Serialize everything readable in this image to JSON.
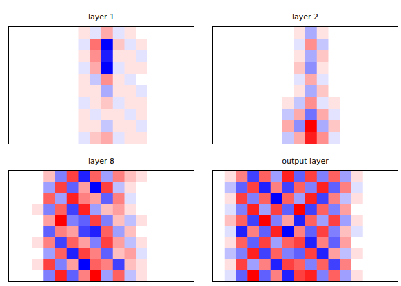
{
  "chart_data": [
    {
      "type": "heatmap",
      "title": "layer 1",
      "tick_labels": false,
      "cells": [
        [
          0,
          0,
          0,
          0,
          0,
          0,
          0.1,
          -0.1,
          0.3,
          -0.1,
          0.1,
          0,
          0,
          0,
          0,
          0
        ],
        [
          0,
          0,
          0,
          0,
          0,
          0,
          -0.1,
          0.5,
          -0.9,
          0.2,
          -0.1,
          0.1,
          0,
          0,
          0,
          0
        ],
        [
          0,
          0,
          0,
          0,
          0,
          0,
          0.1,
          0.4,
          -0.8,
          0.1,
          0.1,
          -0.1,
          0,
          0,
          0,
          0
        ],
        [
          0,
          0,
          0,
          0,
          0,
          0,
          -0.1,
          0.3,
          -0.9,
          -0.1,
          0.1,
          0.1,
          0,
          0,
          0,
          0
        ],
        [
          0,
          0,
          0,
          0,
          0,
          0,
          0.1,
          -0.2,
          0.4,
          0.1,
          -0.1,
          0,
          0,
          0,
          0,
          0
        ],
        [
          0,
          0,
          0,
          0,
          0,
          0,
          0.1,
          0.1,
          -0.3,
          0.1,
          0.1,
          -0.1,
          0,
          0,
          0,
          0
        ],
        [
          0,
          0,
          0,
          0,
          0,
          0,
          -0.1,
          0.1,
          0.2,
          -0.1,
          0.1,
          0.1,
          0,
          0,
          0,
          0
        ],
        [
          0,
          0,
          0,
          0,
          0,
          0,
          0.1,
          -0.1,
          0.1,
          0.1,
          -0.1,
          0.1,
          0,
          0,
          0,
          0
        ],
        [
          0,
          0,
          0,
          0,
          0,
          0,
          0.1,
          0.1,
          -0.2,
          0.1,
          0.1,
          -0.1,
          0,
          0,
          0,
          0
        ],
        [
          0,
          0,
          0,
          0,
          0,
          0,
          -0.1,
          0.2,
          0.3,
          -0.1,
          0.1,
          0.1,
          0,
          0,
          0,
          0
        ]
      ]
    },
    {
      "type": "heatmap",
      "title": "layer 2",
      "tick_labels": false,
      "cells": [
        [
          0,
          0,
          0,
          0,
          0,
          0,
          0,
          0.1,
          -0.3,
          0.1,
          0,
          0,
          0,
          0,
          0,
          0
        ],
        [
          0,
          0,
          0,
          0,
          0,
          0,
          0,
          -0.1,
          0.4,
          -0.2,
          0,
          0,
          0,
          0,
          0,
          0
        ],
        [
          0,
          0,
          0,
          0,
          0,
          0,
          0,
          0.1,
          -0.3,
          0.2,
          0,
          0,
          0,
          0,
          0,
          0
        ],
        [
          0,
          0,
          0,
          0,
          0,
          0,
          0,
          0.2,
          -0.4,
          0.1,
          0,
          0,
          0,
          0,
          0,
          0
        ],
        [
          0,
          0,
          0,
          0,
          0,
          0,
          0,
          -0.1,
          0.3,
          -0.1,
          0,
          0,
          0,
          0,
          0,
          0
        ],
        [
          0,
          0,
          0,
          0,
          0,
          0,
          0,
          0.1,
          -0.3,
          0.2,
          0,
          0,
          0,
          0,
          0,
          0
        ],
        [
          0,
          0,
          0,
          0,
          0,
          0,
          0.1,
          -0.2,
          0.4,
          -0.1,
          0.1,
          0,
          0,
          0,
          0,
          0
        ],
        [
          0,
          0,
          0,
          0,
          0,
          0,
          -0.2,
          0.3,
          -0.5,
          0.3,
          -0.1,
          0,
          0,
          0,
          0,
          0
        ],
        [
          0,
          0,
          0,
          0,
          0,
          0,
          0.3,
          -0.4,
          0.9,
          -0.3,
          0.2,
          0,
          0,
          0,
          0,
          0
        ],
        [
          0,
          0,
          0,
          0,
          0,
          0,
          -0.2,
          0.3,
          0.8,
          0.4,
          -0.1,
          0,
          0,
          0,
          0,
          0
        ]
      ]
    },
    {
      "type": "heatmap",
      "title": "layer 8",
      "tick_labels": false,
      "cells": [
        [
          0,
          0,
          0,
          0.2,
          -0.4,
          0.6,
          -0.7,
          0.5,
          -0.3,
          0.4,
          0.2,
          0.1,
          0,
          0,
          0,
          0
        ],
        [
          0,
          0,
          0,
          -0.3,
          0.6,
          -0.5,
          0.3,
          -0.8,
          0.6,
          -0.2,
          0.1,
          0,
          0,
          0,
          0,
          0
        ],
        [
          0,
          0,
          0,
          0.5,
          -0.3,
          0.7,
          0.4,
          0.3,
          -0.5,
          0.4,
          -0.1,
          0,
          0,
          0,
          0,
          0
        ],
        [
          0,
          0,
          0.1,
          -0.4,
          0.5,
          -0.6,
          0.7,
          -0.3,
          0.2,
          0.3,
          0.1,
          0,
          0,
          0,
          0,
          0
        ],
        [
          0,
          0,
          0,
          0.3,
          0.8,
          -0.4,
          -0.5,
          0.6,
          -0.4,
          0.2,
          -0.2,
          0.1,
          0,
          0,
          0,
          0
        ],
        [
          0,
          0,
          0,
          -0.5,
          0.4,
          0.3,
          -0.6,
          -0.7,
          0.5,
          -0.3,
          0.2,
          0,
          0,
          0,
          0,
          0
        ],
        [
          0,
          0,
          0.1,
          0.4,
          -0.6,
          0.5,
          0.3,
          -0.4,
          0.6,
          0.3,
          -0.2,
          0.1,
          0,
          0,
          0,
          0
        ],
        [
          0,
          0,
          0,
          -0.3,
          0.5,
          -0.7,
          0.6,
          0.4,
          -0.5,
          0.2,
          0.3,
          -0.1,
          0,
          0,
          0,
          0
        ],
        [
          0,
          0,
          0.1,
          0.6,
          -0.4,
          0.3,
          -0.8,
          0.5,
          0.4,
          -0.6,
          0.2,
          0.1,
          0,
          0,
          0,
          0
        ],
        [
          0,
          0,
          0,
          -0.4,
          0.7,
          -0.5,
          0.4,
          0.8,
          -0.3,
          0.5,
          -0.2,
          0.1,
          0,
          0,
          0,
          0
        ]
      ]
    },
    {
      "type": "heatmap",
      "title": "output layer",
      "tick_labels": false,
      "cells": [
        [
          0,
          0.1,
          0.4,
          -0.6,
          0.5,
          -0.3,
          0.7,
          -0.5,
          0.6,
          -0.4,
          0.5,
          -0.3,
          0.1,
          0,
          0,
          0
        ],
        [
          0,
          -0.2,
          -0.5,
          0.6,
          -0.7,
          0.4,
          -0.6,
          0.5,
          -0.4,
          0.7,
          -0.5,
          0.4,
          -0.1,
          0,
          0,
          0
        ],
        [
          0,
          0.1,
          0.6,
          -0.4,
          0.5,
          -0.8,
          0.5,
          -0.3,
          0.7,
          -0.6,
          0.4,
          -0.2,
          0.1,
          0,
          0,
          0
        ],
        [
          0,
          -0.1,
          -0.4,
          0.7,
          -0.3,
          0.6,
          -0.5,
          0.8,
          -0.6,
          0.5,
          -0.4,
          0.3,
          0,
          0,
          0,
          0
        ],
        [
          0,
          0.2,
          0.5,
          -0.6,
          0.8,
          -0.4,
          0.3,
          -0.7,
          0.5,
          -0.3,
          0.6,
          -0.3,
          0.1,
          0,
          0,
          0
        ],
        [
          0,
          -0.1,
          -0.7,
          0.4,
          -0.5,
          0.7,
          -0.8,
          0.4,
          -0.5,
          0.6,
          -0.4,
          0.2,
          -0.1,
          0,
          0,
          0
        ],
        [
          0,
          0.1,
          0.5,
          -0.5,
          0.6,
          -0.3,
          0.5,
          0.6,
          -0.7,
          0.4,
          -0.5,
          0.3,
          0,
          0,
          0,
          0
        ],
        [
          0,
          -0.2,
          -0.4,
          0.7,
          -0.6,
          0.5,
          -0.4,
          -0.5,
          0.6,
          -0.7,
          0.3,
          -0.2,
          0.1,
          0,
          0,
          0
        ],
        [
          0,
          0.1,
          0.6,
          -0.3,
          0.4,
          -0.7,
          0.6,
          0.5,
          -0.4,
          0.5,
          -0.6,
          0.4,
          0,
          0,
          0,
          0
        ],
        [
          0,
          -0.1,
          -0.5,
          0.8,
          -0.5,
          0.4,
          -0.7,
          0.6,
          0.7,
          -0.4,
          0.5,
          -0.3,
          0.1,
          0,
          0,
          0
        ]
      ]
    }
  ]
}
